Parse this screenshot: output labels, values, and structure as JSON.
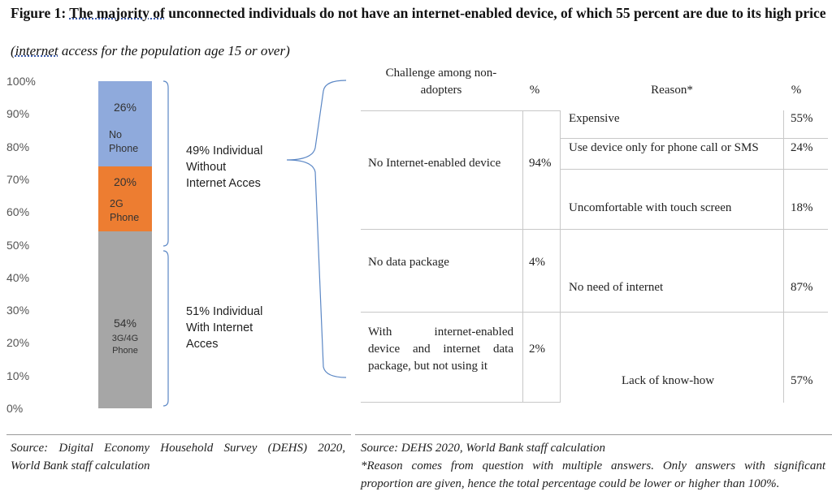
{
  "title": {
    "prefix": "Figure 1: ",
    "part1": "The majority of",
    "part2": " unconnected individuals do not have an internet-enabled device, of which 55 percent are due to its high price"
  },
  "subtitle": {
    "open": "(",
    "word": "internet",
    "rest": " access for the population age 15 or over)"
  },
  "chart_data": {
    "type": "bar",
    "stacked": true,
    "ylim": [
      0,
      100
    ],
    "yticks": [
      "100%",
      "90%",
      "80%",
      "70%",
      "60%",
      "50%",
      "40%",
      "30%",
      "20%",
      "10%",
      "0%"
    ],
    "series": [
      {
        "name": "3G/4G Phone",
        "label_top": "54%",
        "label_line1": "3G/4G",
        "label_line2": "Phone",
        "value": 54,
        "color": "#a6a6a6"
      },
      {
        "name": "2G Phone",
        "label_top": "20%",
        "label_line1": "2G",
        "label_line2": "Phone",
        "value": 20,
        "color": "#ed7d31"
      },
      {
        "name": "No Phone",
        "label_top": "26%",
        "label_line1": "No",
        "label_line2": "Phone",
        "value": 26,
        "color": "#8faadc"
      }
    ],
    "annotations": {
      "without": [
        "49% Individual",
        "Without",
        "Internet Acces"
      ],
      "with": [
        "51% Individual",
        "With Internet",
        "Acces"
      ]
    }
  },
  "table": {
    "headers": {
      "challenge_l1": "Challenge among non-",
      "challenge_l2": "adopters",
      "pct1": "%",
      "reason": "Reason*",
      "pct2": "%"
    },
    "challenges": [
      {
        "label": "No Internet-enabled device",
        "pct": "94%"
      },
      {
        "label": "No data package",
        "pct": "4%"
      },
      {
        "label_lines": [
          "With internet-enabled",
          "device and internet data",
          "package, but not using it"
        ],
        "pct": "2%"
      }
    ],
    "reasons": [
      {
        "label": "Expensive",
        "pct": "55%"
      },
      {
        "label": "Use device only for phone call or SMS",
        "pct": "24%"
      },
      {
        "label": "Uncomfortable with touch screen",
        "pct": "18%"
      },
      {
        "label": "No need of internet",
        "pct": "87%"
      },
      {
        "label": "Lack of know-how",
        "pct": "57%"
      }
    ]
  },
  "sources": {
    "left": [
      "Source: Digital Economy Household Survey (DEHS) 2020,",
      "World Bank staff calculation"
    ],
    "right": [
      "Source: DEHS 2020, World Bank staff calculation",
      "*Reason comes from question with multiple answers. Only answers with significant",
      "proportion are given, hence the total percentage could be lower or higher than 100%."
    ]
  }
}
